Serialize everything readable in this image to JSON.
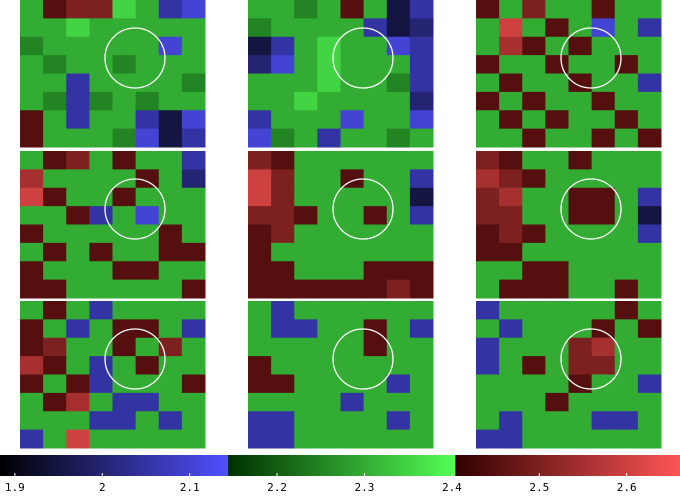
{
  "chart_data": {
    "type": "heatmap",
    "clim": [
      1.883,
      2.661
    ],
    "cticks": [
      1.9,
      2,
      2.1,
      2.2,
      2.3,
      2.4,
      2.5,
      2.6
    ],
    "colormap": [
      {
        "from": 1.883,
        "to": 2.144,
        "colors": [
          "#000000",
          "#5050ff"
        ]
      },
      {
        "from": 2.144,
        "to": 2.404,
        "colors": [
          "#003000",
          "#55ff55"
        ]
      },
      {
        "from": 2.404,
        "to": 2.661,
        "colors": [
          "#300000",
          "#ff5555"
        ]
      }
    ],
    "panels": [
      {
        "values": [
          [
            2.3,
            2.45,
            2.5,
            2.5,
            2.35,
            2.3,
            2.05,
            2.1
          ],
          [
            2.3,
            2.3,
            2.35,
            2.3,
            2.3,
            2.3,
            2.3,
            2.3
          ],
          [
            2.25,
            2.3,
            2.3,
            2.3,
            2.3,
            2.3,
            2.1,
            2.3
          ],
          [
            2.3,
            2.25,
            2.3,
            2.3,
            2.25,
            2.3,
            2.3,
            2.3
          ],
          [
            2.3,
            2.3,
            2.05,
            2.3,
            2.3,
            2.3,
            2.3,
            2.25
          ],
          [
            2.3,
            2.25,
            2.05,
            2.25,
            2.3,
            2.25,
            2.3,
            2.3
          ],
          [
            2.45,
            2.3,
            2.05,
            2.3,
            2.3,
            2.05,
            1.95,
            2.1
          ],
          [
            2.45,
            2.3,
            2.3,
            2.3,
            2.25,
            2.1,
            1.95,
            2.05
          ]
        ]
      },
      {
        "values": [
          [
            2.3,
            2.3,
            2.25,
            2.3,
            2.45,
            2.3,
            1.95,
            2.05
          ],
          [
            2.25,
            2.3,
            2.3,
            2.3,
            2.3,
            2.05,
            1.95,
            2.0
          ],
          [
            1.95,
            2.05,
            2.3,
            2.35,
            2.3,
            2.3,
            2.1,
            2.05
          ],
          [
            2.0,
            2.1,
            2.3,
            2.35,
            2.3,
            2.3,
            2.3,
            2.05
          ],
          [
            2.3,
            2.3,
            2.3,
            2.35,
            2.3,
            2.3,
            2.25,
            2.05
          ],
          [
            2.3,
            2.3,
            2.35,
            2.3,
            2.3,
            2.3,
            2.3,
            2.0
          ],
          [
            2.05,
            2.3,
            2.3,
            2.3,
            2.1,
            2.3,
            2.3,
            2.1
          ],
          [
            2.1,
            2.25,
            2.3,
            2.05,
            2.3,
            2.3,
            2.25,
            2.3
          ]
        ]
      },
      {
        "values": [
          [
            2.45,
            2.3,
            2.5,
            2.3,
            2.3,
            2.45,
            2.3,
            2.3
          ],
          [
            2.3,
            2.6,
            2.3,
            2.45,
            2.3,
            2.1,
            2.3,
            2.05
          ],
          [
            2.3,
            2.55,
            2.45,
            2.3,
            2.45,
            2.3,
            2.3,
            2.3
          ],
          [
            2.45,
            2.3,
            2.3,
            2.45,
            2.3,
            2.3,
            2.45,
            2.3
          ],
          [
            2.3,
            2.45,
            2.3,
            2.3,
            2.45,
            2.3,
            2.3,
            2.05
          ],
          [
            2.45,
            2.3,
            2.45,
            2.3,
            2.3,
            2.45,
            2.3,
            2.3
          ],
          [
            2.3,
            2.45,
            2.3,
            2.45,
            2.3,
            2.3,
            2.45,
            2.3
          ],
          [
            2.3,
            2.3,
            2.45,
            2.3,
            2.3,
            2.45,
            2.3,
            2.45
          ]
        ]
      },
      {
        "values": [
          [
            2.3,
            2.45,
            2.5,
            2.3,
            2.45,
            2.3,
            2.3,
            2.05
          ],
          [
            2.55,
            2.3,
            2.3,
            2.3,
            2.3,
            2.45,
            2.3,
            2.0
          ],
          [
            2.6,
            2.45,
            2.3,
            2.3,
            2.45,
            2.3,
            2.3,
            2.3
          ],
          [
            2.3,
            2.3,
            2.45,
            2.05,
            2.3,
            2.1,
            2.3,
            2.3
          ],
          [
            2.45,
            2.3,
            2.3,
            2.3,
            2.3,
            2.3,
            2.45,
            2.3
          ],
          [
            2.3,
            2.45,
            2.3,
            2.45,
            2.3,
            2.3,
            2.45,
            2.45
          ],
          [
            2.45,
            2.3,
            2.3,
            2.3,
            2.45,
            2.45,
            2.3,
            2.3
          ],
          [
            2.45,
            2.45,
            2.3,
            2.3,
            2.3,
            2.3,
            2.3,
            2.45
          ]
        ]
      },
      {
        "values": [
          [
            2.5,
            2.45,
            2.3,
            2.3,
            2.3,
            2.3,
            2.3,
            2.3
          ],
          [
            2.6,
            2.5,
            2.3,
            2.3,
            2.45,
            2.3,
            2.3,
            2.05
          ],
          [
            2.6,
            2.5,
            2.3,
            2.3,
            2.3,
            2.3,
            2.3,
            1.95
          ],
          [
            2.5,
            2.5,
            2.45,
            2.3,
            2.3,
            2.45,
            2.3,
            2.05
          ],
          [
            2.45,
            2.5,
            2.3,
            2.3,
            2.3,
            2.3,
            2.3,
            2.3
          ],
          [
            2.45,
            2.3,
            2.3,
            2.3,
            2.3,
            2.3,
            2.3,
            2.3
          ],
          [
            2.45,
            2.45,
            2.3,
            2.3,
            2.3,
            2.45,
            2.45,
            2.45
          ],
          [
            2.45,
            2.45,
            2.45,
            2.45,
            2.45,
            2.45,
            2.5,
            2.45
          ]
        ]
      },
      {
        "values": [
          [
            2.5,
            2.45,
            2.3,
            2.3,
            2.45,
            2.3,
            2.3,
            2.3
          ],
          [
            2.55,
            2.5,
            2.45,
            2.3,
            2.3,
            2.3,
            2.3,
            2.3
          ],
          [
            2.5,
            2.55,
            2.3,
            2.3,
            2.45,
            2.45,
            2.3,
            2.05
          ],
          [
            2.5,
            2.5,
            2.3,
            2.3,
            2.45,
            2.45,
            2.3,
            1.95
          ],
          [
            2.45,
            2.5,
            2.45,
            2.3,
            2.3,
            2.3,
            2.3,
            2.05
          ],
          [
            2.45,
            2.45,
            2.3,
            2.3,
            2.3,
            2.3,
            2.3,
            2.3
          ],
          [
            2.3,
            2.3,
            2.45,
            2.45,
            2.3,
            2.3,
            2.3,
            2.3
          ],
          [
            2.3,
            2.45,
            2.45,
            2.45,
            2.3,
            2.3,
            2.45,
            2.3
          ]
        ]
      },
      {
        "values": [
          [
            2.3,
            2.45,
            2.3,
            2.05,
            2.3,
            2.3,
            2.3,
            2.3
          ],
          [
            2.45,
            2.3,
            2.05,
            2.3,
            2.45,
            2.45,
            2.3,
            2.05
          ],
          [
            2.45,
            2.5,
            2.3,
            2.3,
            2.45,
            2.3,
            2.5,
            2.3
          ],
          [
            2.55,
            2.45,
            2.3,
            2.05,
            2.3,
            2.45,
            2.3,
            2.3
          ],
          [
            2.45,
            2.3,
            2.45,
            2.05,
            2.3,
            2.3,
            2.3,
            2.45
          ],
          [
            2.3,
            2.45,
            2.55,
            2.3,
            2.05,
            2.05,
            2.3,
            2.3
          ],
          [
            2.3,
            2.3,
            2.3,
            2.05,
            2.05,
            2.3,
            2.05,
            2.3
          ],
          [
            2.05,
            2.3,
            2.6,
            2.3,
            2.3,
            2.3,
            2.3,
            2.3
          ]
        ]
      },
      {
        "values": [
          [
            2.3,
            2.05,
            2.3,
            2.3,
            2.3,
            2.3,
            2.3,
            2.3
          ],
          [
            2.3,
            2.05,
            2.05,
            2.3,
            2.3,
            2.45,
            2.3,
            2.05
          ],
          [
            2.3,
            2.3,
            2.3,
            2.3,
            2.3,
            2.45,
            2.3,
            2.3
          ],
          [
            2.45,
            2.3,
            2.3,
            2.3,
            2.3,
            2.3,
            2.3,
            2.3
          ],
          [
            2.45,
            2.45,
            2.3,
            2.3,
            2.3,
            2.3,
            2.05,
            2.3
          ],
          [
            2.3,
            2.3,
            2.3,
            2.3,
            2.05,
            2.3,
            2.3,
            2.3
          ],
          [
            2.05,
            2.05,
            2.3,
            2.3,
            2.3,
            2.3,
            2.05,
            2.3
          ],
          [
            2.05,
            2.05,
            2.3,
            2.3,
            2.3,
            2.3,
            2.3,
            2.3
          ]
        ]
      },
      {
        "values": [
          [
            2.05,
            2.3,
            2.3,
            2.3,
            2.3,
            2.3,
            2.45,
            2.3
          ],
          [
            2.3,
            2.05,
            2.3,
            2.3,
            2.3,
            2.45,
            2.3,
            2.45
          ],
          [
            2.05,
            2.3,
            2.3,
            2.3,
            2.5,
            2.55,
            2.3,
            2.3
          ],
          [
            2.05,
            2.3,
            2.45,
            2.3,
            2.5,
            2.5,
            2.3,
            2.3
          ],
          [
            2.3,
            2.3,
            2.3,
            2.3,
            2.45,
            2.3,
            2.3,
            2.05
          ],
          [
            2.3,
            2.3,
            2.3,
            2.45,
            2.3,
            2.3,
            2.3,
            2.3
          ],
          [
            2.3,
            2.05,
            2.3,
            2.3,
            2.3,
            2.05,
            2.05,
            2.3
          ],
          [
            2.05,
            2.05,
            2.3,
            2.3,
            2.3,
            2.3,
            2.3,
            2.3
          ]
        ]
      }
    ]
  }
}
